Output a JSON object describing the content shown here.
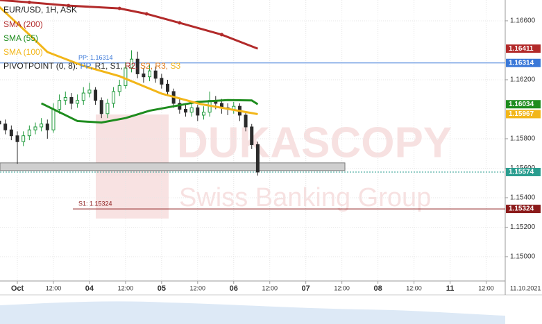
{
  "chart_data": {
    "type": "candlestick",
    "title": "EUR/USD, 1H, ASK",
    "x": [
      -6,
      -4,
      -2,
      0,
      2,
      4,
      6,
      8,
      10,
      12,
      14,
      16,
      18,
      20,
      22,
      24,
      26,
      28,
      30,
      32,
      34,
      36,
      38,
      40,
      42,
      44,
      46,
      48,
      50,
      52,
      54,
      56,
      58,
      60,
      62,
      64,
      66,
      68,
      70,
      72,
      74,
      76,
      78,
      80
    ],
    "open": [
      1.1592,
      1.159,
      1.1586,
      1.1582,
      1.1578,
      1.1582,
      1.1586,
      1.1588,
      1.159,
      1.1586,
      1.16,
      1.1606,
      1.1608,
      1.1604,
      1.1606,
      1.1611,
      1.1613,
      1.1606,
      1.1597,
      1.1604,
      1.1612,
      1.1616,
      1.1628,
      1.1634,
      1.1624,
      1.1622,
      1.1626,
      1.1621,
      1.1617,
      1.1612,
      1.1604,
      1.16,
      1.1598,
      1.1601,
      1.1596,
      1.1598,
      1.1606,
      1.1604,
      1.1601,
      1.16,
      1.1602,
      1.1596,
      1.1588,
      1.1576
    ],
    "high": [
      1.1595,
      1.1593,
      1.1589,
      1.1585,
      1.1585,
      1.1589,
      1.1591,
      1.1594,
      1.1593,
      1.1604,
      1.161,
      1.1612,
      1.1611,
      1.161,
      1.1615,
      1.1618,
      1.1615,
      1.1608,
      1.1607,
      1.1615,
      1.162,
      1.1632,
      1.164,
      1.1639,
      1.1628,
      1.163,
      1.1629,
      1.1624,
      1.162,
      1.1614,
      1.1607,
      1.1604,
      1.1605,
      1.1603,
      1.1602,
      1.1612,
      1.1609,
      1.1607,
      1.1604,
      1.1605,
      1.1604,
      1.1598,
      1.159,
      1.1578
    ],
    "low": [
      1.1587,
      1.1583,
      1.1579,
      1.1563,
      1.1575,
      1.1579,
      1.1583,
      1.1585,
      1.158,
      1.1584,
      1.1597,
      1.1603,
      1.16,
      1.1601,
      1.1603,
      1.1608,
      1.1603,
      1.1594,
      1.1594,
      1.1601,
      1.1609,
      1.1614,
      1.1625,
      1.1621,
      1.1618,
      1.1619,
      1.1618,
      1.1614,
      1.1609,
      1.1601,
      1.1597,
      1.1595,
      1.1595,
      1.1592,
      1.1593,
      1.1595,
      1.16,
      1.1597,
      1.1596,
      1.1597,
      1.1592,
      1.1585,
      1.1573,
      1.1555
    ],
    "close": [
      1.159,
      1.1586,
      1.1582,
      1.1578,
      1.1582,
      1.1586,
      1.1588,
      1.159,
      1.1586,
      1.16,
      1.1606,
      1.1608,
      1.1604,
      1.1606,
      1.1611,
      1.1613,
      1.1606,
      1.1597,
      1.1604,
      1.1612,
      1.1616,
      1.1628,
      1.1634,
      1.1624,
      1.1622,
      1.1626,
      1.1621,
      1.1617,
      1.1612,
      1.1604,
      1.16,
      1.1598,
      1.1601,
      1.1596,
      1.1598,
      1.1606,
      1.1604,
      1.1601,
      1.16,
      1.1602,
      1.1596,
      1.1588,
      1.1576,
      1.15574
    ],
    "up_color": "#1f9a3b",
    "down_color": "#2b2b2b",
    "series": [
      {
        "name": "SMA (200)",
        "color": "#b22a2a",
        "x": [
          -6,
          4,
          17,
          34,
          43,
          54,
          68,
          80
        ],
        "values": [
          1.16741,
          1.16725,
          1.16703,
          1.16684,
          1.16647,
          1.16586,
          1.16506,
          1.16411
        ]
      },
      {
        "name": "SMA (55)",
        "color": "#1e8c1e",
        "x": [
          8,
          14,
          20,
          28,
          36,
          44,
          52,
          60,
          70,
          78,
          80
        ],
        "values": [
          1.1604,
          1.1598,
          1.1592,
          1.1591,
          1.1594,
          1.1599,
          1.1602,
          1.1605,
          1.16062,
          1.1606,
          1.16034
        ]
      },
      {
        "name": "SMA (100)",
        "color": "#f2b619",
        "x": [
          -6,
          4,
          10,
          22,
          34,
          48,
          61,
          80
        ],
        "values": [
          1.16694,
          1.16506,
          1.16388,
          1.16294,
          1.16224,
          1.16106,
          1.16035,
          1.15967
        ]
      }
    ],
    "pivot_legend": {
      "label": "PIVOTPOINT (0, 8):",
      "items": [
        {
          "text": "PP,",
          "color": "#3a78d8"
        },
        {
          "text": "R1,",
          "color": "#333333"
        },
        {
          "text": "S1,",
          "color": "#333333"
        },
        {
          "text": "R2,",
          "color": "#b22a2a"
        },
        {
          "text": "S2,",
          "color": "#e07b1a"
        },
        {
          "text": "R3,",
          "color": "#e07b1a"
        },
        {
          "text": "S3",
          "color": "#f2b619"
        }
      ]
    },
    "levels": [
      {
        "label": "PP: 1.16314",
        "value": 1.16314,
        "color": "#3a78d8"
      },
      {
        "label": "S1: 1.15324",
        "value": 1.15324,
        "color": "#8b1a1a"
      }
    ],
    "zone": [
      1.15584,
      1.15636
    ],
    "current_price": 1.15574,
    "price_tags": [
      {
        "value": 1.16411,
        "color": "#b22a2a"
      },
      {
        "value": 1.16314,
        "color": "#3a78d8"
      },
      {
        "value": 1.16034,
        "color": "#1e8c1e"
      },
      {
        "value": 1.15967,
        "color": "#f2b619"
      },
      {
        "value": 1.15574,
        "color": "#2a9d8f"
      },
      {
        "value": 1.15324,
        "color": "#8b1a1a"
      }
    ],
    "watermark": [
      "DUKASCOPY",
      "Swiss Banking Group"
    ],
    "date_label": "11.10.2021",
    "xlim": [
      -6,
      162
    ],
    "ylim": [
      1.14835,
      1.16741
    ],
    "xticks": [
      {
        "value": 0,
        "label": "Oct"
      },
      {
        "value": 12,
        "label": "12:00"
      },
      {
        "value": 24,
        "label": "04"
      },
      {
        "value": 36,
        "label": "12:00"
      },
      {
        "value": 48,
        "label": "05"
      },
      {
        "value": 60,
        "label": "12:00"
      },
      {
        "value": 72,
        "label": "06"
      },
      {
        "value": 84,
        "label": "12:00"
      },
      {
        "value": 96,
        "label": "07"
      },
      {
        "value": 108,
        "label": "12:00"
      },
      {
        "value": 120,
        "label": "08"
      },
      {
        "value": 132,
        "label": "12:00"
      },
      {
        "value": 144,
        "label": "11"
      },
      {
        "value": 156,
        "label": "12:00"
      }
    ],
    "yticks": [
      {
        "value": 1.166,
        "label": "1.16600"
      },
      {
        "value": 1.162,
        "label": "1.16200"
      },
      {
        "value": 1.158,
        "label": "1.15800"
      },
      {
        "value": 1.156,
        "label": "1.15600"
      },
      {
        "value": 1.154,
        "label": "1.15400"
      },
      {
        "value": 1.152,
        "label": "1.15200"
      },
      {
        "value": 1.15,
        "label": "1.15000"
      }
    ],
    "grid": true
  }
}
